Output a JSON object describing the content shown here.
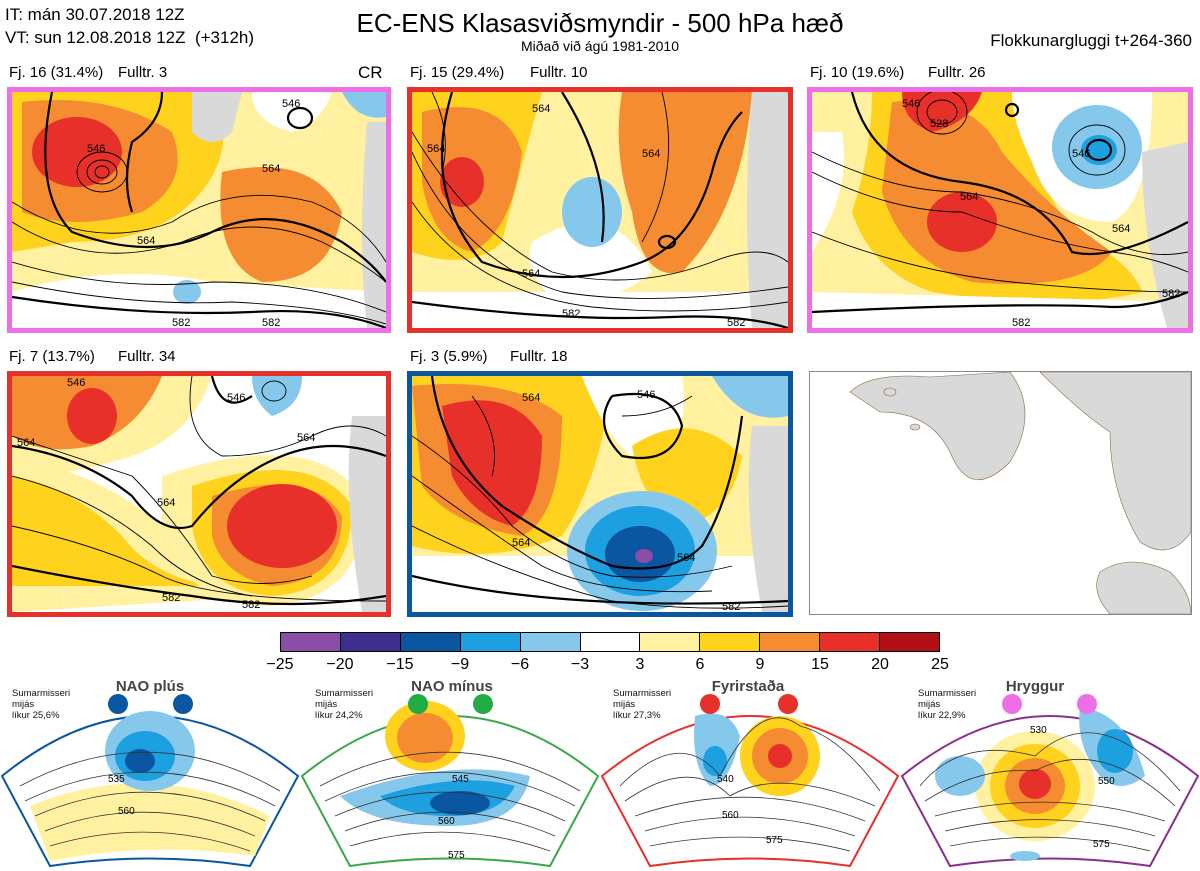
{
  "header": {
    "it_line": "IT: mán 30.07.2018 12Z",
    "vt_line": "VT: sun 12.08.2018 12Z  (+312h)",
    "title": "EC-ENS Klasasviðsmyndir - 500 hPa hæð",
    "subtitle": "Miðað við ágú 1981-2010",
    "window": "Flokkunargluggi t+264-360"
  },
  "panels": [
    {
      "label": "Fj. 16 (31.4%)",
      "members": "Fulltr. 3",
      "border": "#ee6ee6",
      "extra": "CR",
      "contours": [
        "546",
        "546",
        "564",
        "564",
        "582",
        "582"
      ]
    },
    {
      "label": "Fj. 15 (29.4%)",
      "members": "Fulltr. 10",
      "border": "#e8302a",
      "contours": [
        "564",
        "564",
        "564",
        "564",
        "582",
        "582"
      ]
    },
    {
      "label": "Fj. 10 (19.6%)",
      "members": "Fulltr. 26",
      "border": "#ee6ee6",
      "contours": [
        "546",
        "528",
        "546",
        "564",
        "564",
        "582",
        "582"
      ]
    },
    {
      "label": "Fj. 7 (13.7%)",
      "members": "Fulltr. 34",
      "border": "#e8302a",
      "contours": [
        "546",
        "546",
        "564",
        "564",
        "564",
        "582",
        "582"
      ]
    },
    {
      "label": "Fj. 3 (5.9%)",
      "members": "Fulltr. 18",
      "border": "#0a56a0",
      "contours": [
        "546",
        "564",
        "564",
        "564",
        "582"
      ]
    }
  ],
  "colorbar": {
    "colors": [
      "#8b4ea6",
      "#3f2e8e",
      "#0a56a0",
      "#1ca0e0",
      "#86c8ec",
      "#ffffff",
      "#fff1a0",
      "#ffd21e",
      "#f58c32",
      "#e8302a",
      "#b01016"
    ],
    "ticks": [
      "−25",
      "−20",
      "−15",
      "−9",
      "−6",
      "−3",
      "3",
      "6",
      "9",
      "15",
      "20",
      "25"
    ]
  },
  "regimes": [
    {
      "name": "NAO plús",
      "season": "Sumarmisseri",
      "mean": "mijás",
      "prob": "líkur 25,6%",
      "color": "#0a56a0",
      "frame": "#0a56a0",
      "contours": [
        "535",
        "560"
      ]
    },
    {
      "name": "NAO mínus",
      "season": "Sumarmisseri",
      "mean": "mijás",
      "prob": "líkur 24,2%",
      "color": "#22aa44",
      "frame": "#3aa84a",
      "contours": [
        "545",
        "560",
        "575"
      ]
    },
    {
      "name": "Fyrirstaða",
      "season": "Sumarmisseri",
      "mean": "mijás",
      "prob": "líkur 27,3%",
      "color": "#e8302a",
      "frame": "#e8302a",
      "contours": [
        "540",
        "560",
        "575"
      ]
    },
    {
      "name": "Hryggur",
      "season": "Sumarmisseri",
      "mean": "mijás",
      "prob": "líkur 22,9%",
      "color": "#ee6ee6",
      "frame": "#8a2f8e",
      "contours": [
        "530",
        "550",
        "575"
      ]
    }
  ]
}
